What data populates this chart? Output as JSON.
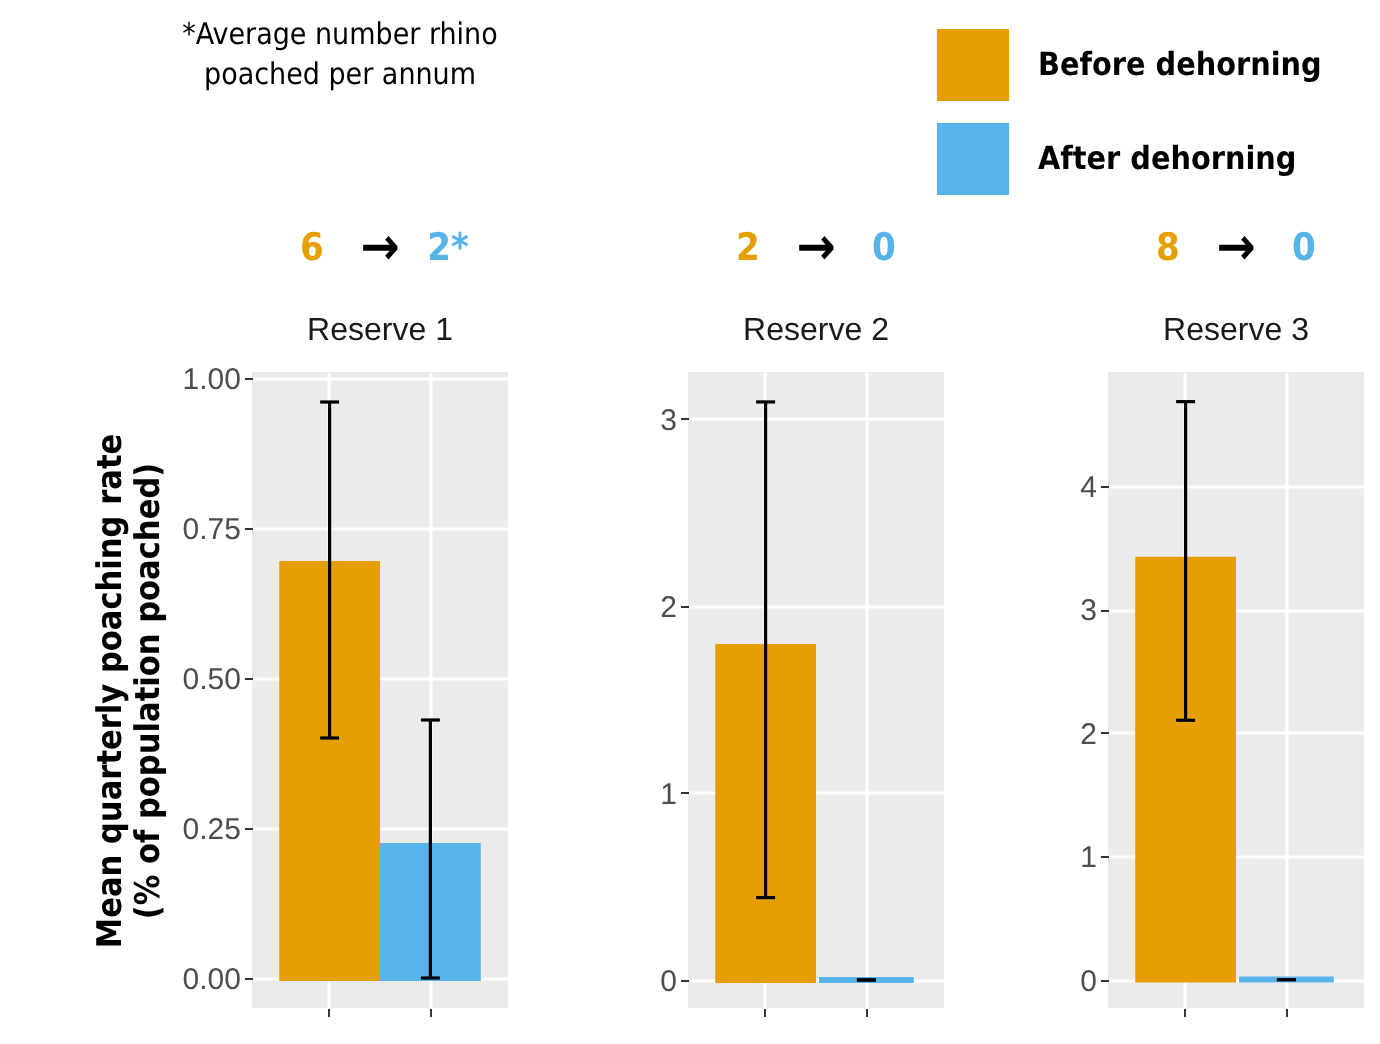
{
  "chart_data": [
    {
      "type": "bar",
      "title": "Reserve 1",
      "ylabel": "Mean quarterly poaching rate (% of population poached)",
      "categories": [
        null,
        null
      ],
      "series": [
        {
          "color": "#e69f00",
          "values": [
            0.69,
            null
          ],
          "errors": [
            [
              0.4,
              0.96
            ],
            null
          ]
        },
        {
          "color": "#56b4e9",
          "values": [
            null,
            0.22
          ],
          "errors": [
            null,
            [
              0.0,
              0.43
            ]
          ]
        }
      ],
      "ylim": [
        -0.05,
        1.01
      ],
      "yticks": [
        {
          "value": 0,
          "label": "0.00"
        },
        {
          "value": 0.25,
          "label": "0.25"
        },
        {
          "value": 0.5,
          "label": "0.50"
        },
        {
          "value": 0.75,
          "label": "0.75"
        },
        {
          "value": 1,
          "label": "1.00"
        }
      ],
      "grid": true,
      "annotations": [
        "*Average number rhino poached per annum",
        "6 → 2*"
      ]
    },
    {
      "type": "bar",
      "title": "Reserve 2",
      "categories": [
        null,
        null
      ],
      "series": [
        {
          "color": "#e69f00",
          "values": [
            1.78,
            null
          ],
          "errors": [
            [
              0.44,
              3.09
            ],
            null
          ]
        },
        {
          "color": "#56b4e9",
          "values": [
            null,
            0
          ],
          "errors": [
            null,
            [
              0,
              0
            ]
          ]
        }
      ],
      "ylim": [
        -0.15,
        3.25
      ],
      "yticks": [
        0,
        1,
        2,
        3
      ],
      "grid": true,
      "annotations": [
        "2 → 0"
      ]
    },
    {
      "type": "bar",
      "title": "Reserve 3",
      "categories": [
        null,
        null
      ],
      "series": [
        {
          "name": "Before dehorning",
          "color": "#e69f00",
          "values": [
            3.4,
            null
          ],
          "errors": [
            [
              2.1,
              4.68
            ],
            null
          ]
        },
        {
          "name": "After dehorning",
          "color": "#56b4e9",
          "values": [
            null,
            0
          ],
          "errors": [
            null,
            [
              0,
              0
            ]
          ]
        }
      ],
      "ylim": [
        -0.23,
        4.92
      ],
      "yticks": [
        0,
        1,
        2,
        3,
        4
      ],
      "grid": true,
      "legend": "top",
      "annotations": [
        "8 → 0"
      ]
    }
  ]
}
